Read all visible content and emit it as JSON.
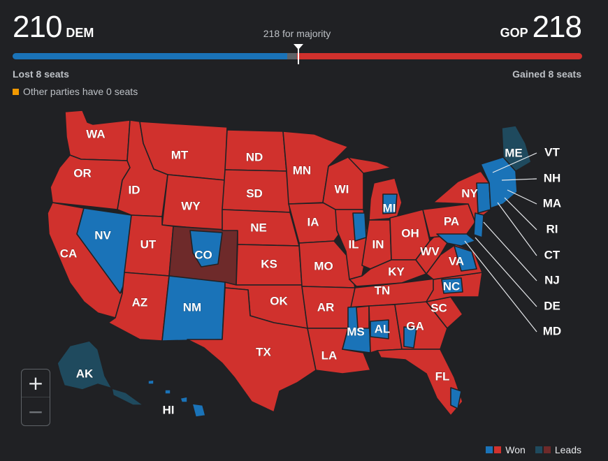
{
  "header": {
    "dem_seats": "210",
    "dem_label": "DEM",
    "gop_seats": "218",
    "gop_label": "GOP",
    "majority_text": "218 for majority",
    "dem_change": "Lost 8 seats",
    "gop_change": "Gained 8 seats",
    "other_parties": "Other parties have 0 seats"
  },
  "seat_bar": {
    "dem": 210,
    "undecided": 7,
    "gop": 218,
    "total": 435
  },
  "colors": {
    "dem_won": "#1a73b8",
    "gop_won": "#d0312d",
    "dem_leads": "#1f4a5e",
    "gop_leads": "#6e2a2a",
    "other": "#f29900",
    "background": "#202124"
  },
  "map": {
    "states": [
      "WA",
      "OR",
      "CA",
      "NV",
      "ID",
      "MT",
      "WY",
      "UT",
      "CO",
      "AZ",
      "NM",
      "ND",
      "SD",
      "NE",
      "KS",
      "OK",
      "TX",
      "MN",
      "IA",
      "MO",
      "AR",
      "LA",
      "WI",
      "IL",
      "MS",
      "MI",
      "IN",
      "KY",
      "TN",
      "AL",
      "OH",
      "WV",
      "GA",
      "FL",
      "SC",
      "NC",
      "VA",
      "PA",
      "NY",
      "ME",
      "AK",
      "HI"
    ],
    "callouts": [
      "VT",
      "NH",
      "MA",
      "RI",
      "CT",
      "NJ",
      "DE",
      "MD"
    ]
  },
  "controls": {
    "zoom_in": "+",
    "zoom_out": "−"
  },
  "legend": {
    "won": "Won",
    "leads": "Leads"
  }
}
